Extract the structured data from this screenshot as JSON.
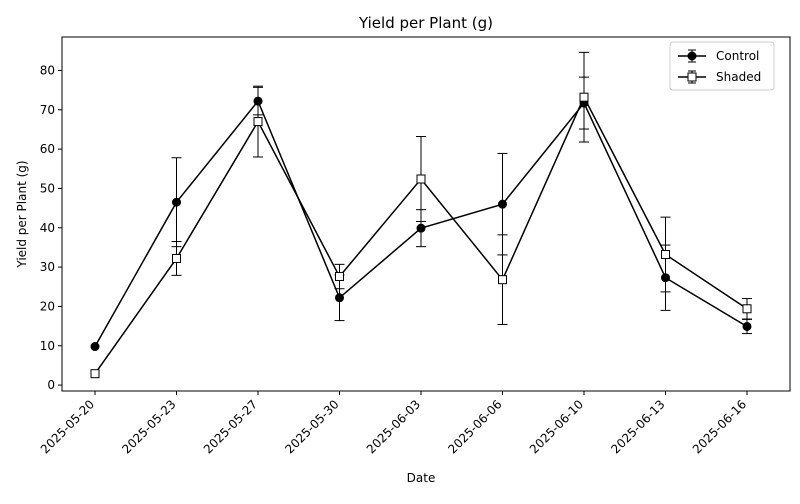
{
  "chart_data": {
    "type": "line",
    "title": "Yield per Plant (g)",
    "xlabel": "Date",
    "ylabel": "Yield per Plant (g)",
    "categories": [
      "2025-05-20",
      "2025-05-23",
      "2025-05-27",
      "2025-05-30",
      "2025-06-03",
      "2025-06-06",
      "2025-06-10",
      "2025-06-13",
      "2025-06-16"
    ],
    "y_ticks": [
      "0",
      "10",
      "20",
      "30",
      "40",
      "50",
      "60",
      "70",
      "80"
    ],
    "ylim": [
      -1.5,
      88.5
    ],
    "grid": false,
    "legend_position": "top-right",
    "series": [
      {
        "name": "Control",
        "marker": "filled-circle",
        "color": "#000000",
        "values": [
          9.8,
          46.5,
          72.2,
          22.2,
          39.9,
          46.0,
          71.7,
          27.3,
          14.9
        ],
        "errors": [
          0.0,
          11.3,
          3.5,
          5.8,
          4.7,
          12.9,
          6.6,
          8.3,
          1.8
        ]
      },
      {
        "name": "Shaded",
        "marker": "open-square",
        "color": "#000000",
        "values": [
          2.9,
          32.2,
          67.0,
          27.6,
          52.4,
          26.8,
          73.2,
          33.2,
          19.4
        ],
        "errors": [
          0.0,
          4.3,
          9.0,
          3.1,
          10.8,
          11.4,
          11.4,
          9.5,
          2.6
        ]
      }
    ]
  }
}
